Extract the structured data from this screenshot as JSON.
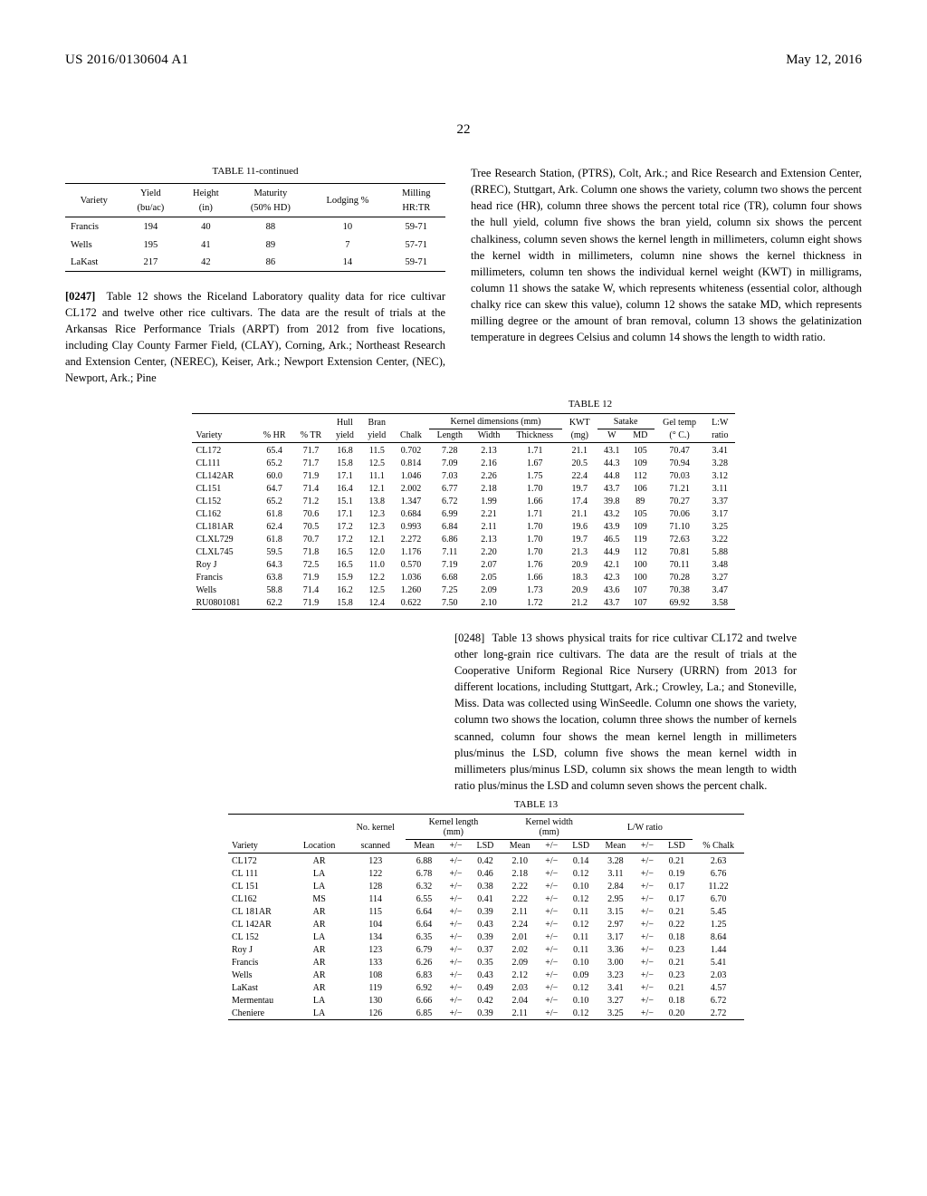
{
  "header": {
    "pub_num": "US 2016/0130604 A1",
    "pub_date": "May 12, 2016",
    "page_num": "22"
  },
  "table11": {
    "caption": "TABLE 11-continued",
    "cols": [
      "Variety",
      "Yield (bu/ac)",
      "Height (in)",
      "Maturity (50% HD)",
      "Lodging %",
      "Milling HR:TR"
    ],
    "rows": [
      [
        "Francis",
        "194",
        "40",
        "88",
        "10",
        "59-71"
      ],
      [
        "Wells",
        "195",
        "41",
        "89",
        "7",
        "57-71"
      ],
      [
        "LaKast",
        "217",
        "42",
        "86",
        "14",
        "59-71"
      ]
    ]
  },
  "para247_label": "[0247]",
  "para247": "Table 12 shows the Riceland Laboratory quality data for rice cultivar CL172 and twelve other rice cultivars. The data are the result of trials at the Arkansas Rice Performance Trials (ARPT) from 2012 from five locations, including Clay County Farmer Field, (CLAY), Corning, Ark.; Northeast Research and Extension Center, (NEREC), Keiser, Ark.; Newport Extension Center, (NEC), Newport, Ark.; Pine",
  "col_right_top": "Tree Research Station, (PTRS), Colt, Ark.; and Rice Research and Extension Center, (RREC), Stuttgart, Ark. Column one shows the variety, column two shows the percent head rice (HR), column three shows the percent total rice (TR), column four shows the hull yield, column five shows the bran yield, column six shows the percent chalkiness, column seven shows the kernel length in millimeters, column eight shows the kernel width in millimeters, column nine shows the kernel thickness in millimeters, column ten shows the individual kernel weight (KWT) in milligrams, column 11 shows the satake W, which represents whiteness (essential color, although chalky rice can skew this value), column 12 shows the satake MD, which represents milling degree or the amount of bran removal, column 13 shows the gelatinization temperature in degrees Celsius and column 14 shows the length to width ratio.",
  "table12": {
    "caption": "TABLE 12",
    "group_headers": [
      "",
      "",
      "",
      "Hull",
      "Bran",
      "",
      "Kernel dimensions (mm)",
      "KWT",
      "Satake",
      "Gel temp",
      "L:W"
    ],
    "sub_headers": [
      "Variety",
      "% HR",
      "% TR",
      "yield",
      "yield",
      "Chalk",
      "Length",
      "Width",
      "Thickness",
      "(mg)",
      "W",
      "MD",
      "(° C.)",
      "ratio"
    ],
    "rows": [
      [
        "CL172",
        "65.4",
        "71.7",
        "16.8",
        "11.5",
        "0.702",
        "7.28",
        "2.13",
        "1.71",
        "21.1",
        "43.1",
        "105",
        "70.47",
        "3.41"
      ],
      [
        "CL111",
        "65.2",
        "71.7",
        "15.8",
        "12.5",
        "0.814",
        "7.09",
        "2.16",
        "1.67",
        "20.5",
        "44.3",
        "109",
        "70.94",
        "3.28"
      ],
      [
        "CL142AR",
        "60.0",
        "71.9",
        "17.1",
        "11.1",
        "1.046",
        "7.03",
        "2.26",
        "1.75",
        "22.4",
        "44.8",
        "112",
        "70.03",
        "3.12"
      ],
      [
        "CL151",
        "64.7",
        "71.4",
        "16.4",
        "12.1",
        "2.002",
        "6.77",
        "2.18",
        "1.70",
        "19.7",
        "43.7",
        "106",
        "71.21",
        "3.11"
      ],
      [
        "CL152",
        "65.2",
        "71.2",
        "15.1",
        "13.8",
        "1.347",
        "6.72",
        "1.99",
        "1.66",
        "17.4",
        "39.8",
        "89",
        "70.27",
        "3.37"
      ],
      [
        "CL162",
        "61.8",
        "70.6",
        "17.1",
        "12.3",
        "0.684",
        "6.99",
        "2.21",
        "1.71",
        "21.1",
        "43.2",
        "105",
        "70.06",
        "3.17"
      ],
      [
        "CL181AR",
        "62.4",
        "70.5",
        "17.2",
        "12.3",
        "0.993",
        "6.84",
        "2.11",
        "1.70",
        "19.6",
        "43.9",
        "109",
        "71.10",
        "3.25"
      ],
      [
        "CLXL729",
        "61.8",
        "70.7",
        "17.2",
        "12.1",
        "2.272",
        "6.86",
        "2.13",
        "1.70",
        "19.7",
        "46.5",
        "119",
        "72.63",
        "3.22"
      ],
      [
        "CLXL745",
        "59.5",
        "71.8",
        "16.5",
        "12.0",
        "1.176",
        "7.11",
        "2.20",
        "1.70",
        "21.3",
        "44.9",
        "112",
        "70.81",
        "5.88"
      ],
      [
        "Roy J",
        "64.3",
        "72.5",
        "16.5",
        "11.0",
        "0.570",
        "7.19",
        "2.07",
        "1.76",
        "20.9",
        "42.1",
        "100",
        "70.11",
        "3.48"
      ],
      [
        "Francis",
        "63.8",
        "71.9",
        "15.9",
        "12.2",
        "1.036",
        "6.68",
        "2.05",
        "1.66",
        "18.3",
        "42.3",
        "100",
        "70.28",
        "3.27"
      ],
      [
        "Wells",
        "58.8",
        "71.4",
        "16.2",
        "12.5",
        "1.260",
        "7.25",
        "2.09",
        "1.73",
        "20.9",
        "43.6",
        "107",
        "70.38",
        "3.47"
      ],
      [
        "RU0801081",
        "62.2",
        "71.9",
        "15.8",
        "12.4",
        "0.622",
        "7.50",
        "2.10",
        "1.72",
        "21.2",
        "43.7",
        "107",
        "69.92",
        "3.58"
      ]
    ]
  },
  "para248_label": "[0248]",
  "para248": "Table 13 shows physical traits for rice cultivar CL172 and twelve other long-grain rice cultivars. The data are the result of trials at the Cooperative Uniform Regional Rice Nursery (URRN) from 2013 for different locations, including Stuttgart, Ark.; Crowley, La.; and Stoneville, Miss. Data was collected using WinSeedle. Column one shows the variety, column two shows the location, column three shows the number of kernels scanned, column four shows the mean kernel length in millimeters plus/minus the LSD, column five shows the mean kernel width in millimeters plus/minus LSD, column six shows the mean length to width ratio plus/minus the LSD and column seven shows the percent chalk.",
  "table13": {
    "caption": "TABLE 13",
    "group_headers": [
      "",
      "",
      "No. kernel",
      "Kernel length (mm)",
      "Kernel width (mm)",
      "L/W ratio",
      ""
    ],
    "sub_headers": [
      "Variety",
      "Location",
      "scanned",
      "Mean",
      "+/−",
      "LSD",
      "Mean",
      "+/−",
      "LSD",
      "Mean",
      "+/−",
      "LSD",
      "% Chalk"
    ],
    "rows": [
      [
        "CL172",
        "AR",
        "123",
        "6.88",
        "+/−",
        "0.42",
        "2.10",
        "+/−",
        "0.14",
        "3.28",
        "+/−",
        "0.21",
        "2.63"
      ],
      [
        "CL 111",
        "LA",
        "122",
        "6.78",
        "+/−",
        "0.46",
        "2.18",
        "+/−",
        "0.12",
        "3.11",
        "+/−",
        "0.19",
        "6.76"
      ],
      [
        "CL 151",
        "LA",
        "128",
        "6.32",
        "+/−",
        "0.38",
        "2.22",
        "+/−",
        "0.10",
        "2.84",
        "+/−",
        "0.17",
        "11.22"
      ],
      [
        "CL162",
        "MS",
        "114",
        "6.55",
        "+/−",
        "0.41",
        "2.22",
        "+/−",
        "0.12",
        "2.95",
        "+/−",
        "0.17",
        "6.70"
      ],
      [
        "CL 181AR",
        "AR",
        "115",
        "6.64",
        "+/−",
        "0.39",
        "2.11",
        "+/−",
        "0.11",
        "3.15",
        "+/−",
        "0.21",
        "5.45"
      ],
      [
        "CL 142AR",
        "AR",
        "104",
        "6.64",
        "+/−",
        "0.43",
        "2.24",
        "+/−",
        "0.12",
        "2.97",
        "+/−",
        "0.22",
        "1.25"
      ],
      [
        "CL 152",
        "LA",
        "134",
        "6.35",
        "+/−",
        "0.39",
        "2.01",
        "+/−",
        "0.11",
        "3.17",
        "+/−",
        "0.18",
        "8.64"
      ],
      [
        "Roy J",
        "AR",
        "123",
        "6.79",
        "+/−",
        "0.37",
        "2.02",
        "+/−",
        "0.11",
        "3.36",
        "+/−",
        "0.23",
        "1.44"
      ],
      [
        "Francis",
        "AR",
        "133",
        "6.26",
        "+/−",
        "0.35",
        "2.09",
        "+/−",
        "0.10",
        "3.00",
        "+/−",
        "0.21",
        "5.41"
      ],
      [
        "Wells",
        "AR",
        "108",
        "6.83",
        "+/−",
        "0.43",
        "2.12",
        "+/−",
        "0.09",
        "3.23",
        "+/−",
        "0.23",
        "2.03"
      ],
      [
        "LaKast",
        "AR",
        "119",
        "6.92",
        "+/−",
        "0.49",
        "2.03",
        "+/−",
        "0.12",
        "3.41",
        "+/−",
        "0.21",
        "4.57"
      ],
      [
        "Mermentau",
        "LA",
        "130",
        "6.66",
        "+/−",
        "0.42",
        "2.04",
        "+/−",
        "0.10",
        "3.27",
        "+/−",
        "0.18",
        "6.72"
      ],
      [
        "Cheniere",
        "LA",
        "126",
        "6.85",
        "+/−",
        "0.39",
        "2.11",
        "+/−",
        "0.12",
        "3.25",
        "+/−",
        "0.20",
        "2.72"
      ]
    ]
  }
}
